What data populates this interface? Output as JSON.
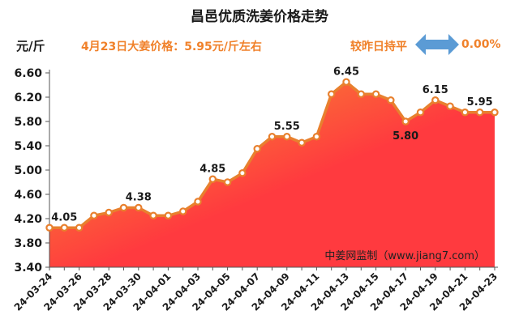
{
  "header": {
    "title": "昌邑优质洗姜价格走势",
    "unit_label": "元/斤",
    "price_note": "4月23日大姜价格：5.95元/斤左右",
    "compare_text": "较昨日持平",
    "change_pct": "0.00%"
  },
  "colors": {
    "accent": "#f0812a",
    "line": "#e8802e",
    "area_top": "#ff3a3f",
    "area_bottom": "#f5a12e",
    "arrow": "#5b9bd5"
  },
  "chart_data": {
    "type": "area",
    "title": "昌邑优质洗姜价格走势",
    "ylabel": "元/斤",
    "ylim": [
      3.4,
      6.6
    ],
    "yticks": [
      "3.40",
      "3.80",
      "4.20",
      "4.60",
      "5.00",
      "5.40",
      "5.80",
      "6.20",
      "6.60"
    ],
    "x": [
      "24-03-24",
      "24-03-25",
      "24-03-26",
      "24-03-27",
      "24-03-28",
      "24-03-29",
      "24-03-30",
      "24-03-31",
      "24-04-01",
      "24-04-02",
      "24-04-03",
      "24-04-04",
      "24-04-05",
      "24-04-06",
      "24-04-07",
      "24-04-08",
      "24-04-09",
      "24-04-10",
      "24-04-11",
      "24-04-12",
      "24-04-13",
      "24-04-14",
      "24-04-15",
      "24-04-16",
      "24-04-17",
      "24-04-18",
      "24-04-19",
      "24-04-20",
      "24-04-21",
      "24-04-22",
      "24-04-23"
    ],
    "xtick_labels": [
      "24-03-24",
      "24-03-26",
      "24-03-28",
      "24-03-30",
      "24-04-01",
      "24-04-03",
      "24-04-05",
      "24-04-07",
      "24-04-09",
      "24-04-11",
      "24-04-13",
      "24-04-15",
      "24-04-17",
      "24-04-19",
      "24-04-21",
      "24-04-23"
    ],
    "series": [
      {
        "name": "昌邑优质洗姜",
        "values": [
          4.05,
          4.05,
          4.05,
          4.25,
          4.3,
          4.38,
          4.38,
          4.25,
          4.25,
          4.32,
          4.48,
          4.85,
          4.8,
          4.95,
          5.35,
          5.55,
          5.55,
          5.45,
          5.55,
          6.25,
          6.45,
          6.25,
          6.25,
          6.15,
          5.8,
          5.95,
          6.15,
          6.05,
          5.95,
          5.95,
          5.95
        ]
      }
    ],
    "annotations": [
      {
        "x": "24-03-25",
        "label": "4.05"
      },
      {
        "x": "24-03-30",
        "label": "4.38"
      },
      {
        "x": "24-04-04",
        "label": "4.85"
      },
      {
        "x": "24-04-09",
        "label": "5.55"
      },
      {
        "x": "24-04-13",
        "label": "6.45"
      },
      {
        "x": "24-04-17",
        "label": "5.80"
      },
      {
        "x": "24-04-19",
        "label": "6.15"
      },
      {
        "x": "24-04-22",
        "label": "5.95"
      }
    ],
    "watermark": "中姜网监制（www.jiang7.com）"
  }
}
